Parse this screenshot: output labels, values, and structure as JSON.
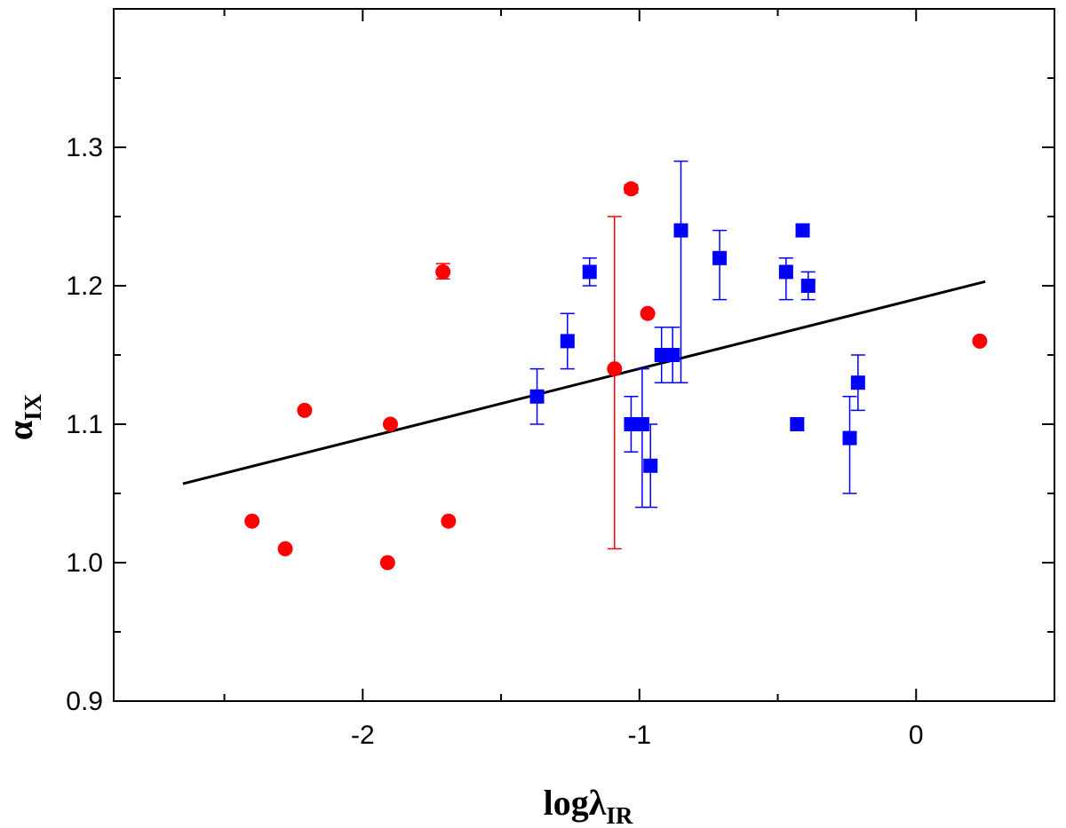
{
  "chart_data": {
    "type": "scatter",
    "title": "",
    "xlabel": {
      "main": "logλ",
      "sub": "IR"
    },
    "ylabel": {
      "main": "α",
      "sub": "IX"
    },
    "xlim": [
      -2.9,
      0.5
    ],
    "ylim": [
      0.9,
      1.4
    ],
    "x_ticks": [
      {
        "value": -2,
        "label": "-2"
      },
      {
        "value": -1,
        "label": "-1"
      },
      {
        "value": 0,
        "label": "0"
      }
    ],
    "y_ticks": [
      {
        "value": 0.9,
        "label": "0.9"
      },
      {
        "value": 1.0,
        "label": "1.0"
      },
      {
        "value": 1.1,
        "label": "1.1"
      },
      {
        "value": 1.2,
        "label": "1.2"
      },
      {
        "value": 1.3,
        "label": "1.3"
      }
    ],
    "x_minor_step": 0.5,
    "y_minor_step": 0.05,
    "series": [
      {
        "name": "circles",
        "marker": "circle",
        "color": "#ff0000",
        "points": [
          {
            "x": -2.4,
            "y": 1.03
          },
          {
            "x": -2.28,
            "y": 1.01
          },
          {
            "x": -2.21,
            "y": 1.11
          },
          {
            "x": -1.91,
            "y": 1.0
          },
          {
            "x": -1.9,
            "y": 1.1
          },
          {
            "x": -1.71,
            "y": 1.21,
            "lo": 1.205,
            "hi": 1.216
          },
          {
            "x": -1.69,
            "y": 1.03
          },
          {
            "x": -1.09,
            "y": 1.14,
            "lo": 1.01,
            "hi": 1.25
          },
          {
            "x": -1.03,
            "y": 1.27,
            "lo": 1.267,
            "hi": 1.273
          },
          {
            "x": -0.97,
            "y": 1.18
          },
          {
            "x": 0.23,
            "y": 1.16
          }
        ]
      },
      {
        "name": "squares",
        "marker": "square",
        "color": "#0000ff",
        "points": [
          {
            "x": -1.37,
            "y": 1.12,
            "lo": 1.1,
            "hi": 1.14
          },
          {
            "x": -1.26,
            "y": 1.16,
            "lo": 1.14,
            "hi": 1.18
          },
          {
            "x": -1.18,
            "y": 1.21,
            "lo": 1.2,
            "hi": 1.22
          },
          {
            "x": -1.03,
            "y": 1.1,
            "lo": 1.08,
            "hi": 1.12
          },
          {
            "x": -0.99,
            "y": 1.1,
            "lo": 1.04,
            "hi": 1.14
          },
          {
            "x": -0.96,
            "y": 1.07,
            "lo": 1.04,
            "hi": 1.1
          },
          {
            "x": -0.92,
            "y": 1.15,
            "lo": 1.13,
            "hi": 1.17
          },
          {
            "x": -0.88,
            "y": 1.15,
            "lo": 1.13,
            "hi": 1.17
          },
          {
            "x": -0.85,
            "y": 1.24,
            "lo": 1.13,
            "hi": 1.29
          },
          {
            "x": -0.71,
            "y": 1.22,
            "lo": 1.19,
            "hi": 1.24
          },
          {
            "x": -0.47,
            "y": 1.21,
            "lo": 1.19,
            "hi": 1.22
          },
          {
            "x": -0.43,
            "y": 1.1
          },
          {
            "x": -0.41,
            "y": 1.24,
            "lo": 1.236,
            "hi": 1.244
          },
          {
            "x": -0.39,
            "y": 1.2,
            "lo": 1.19,
            "hi": 1.21
          },
          {
            "x": -0.24,
            "y": 1.09,
            "lo": 1.05,
            "hi": 1.12
          },
          {
            "x": -0.21,
            "y": 1.13,
            "lo": 1.11,
            "hi": 1.15
          }
        ]
      }
    ],
    "fit_line": {
      "name": "linear fit",
      "color": "#000000",
      "x": [
        -2.65,
        0.25
      ],
      "y": [
        1.057,
        1.203
      ]
    },
    "legend": "none",
    "grid": false
  }
}
